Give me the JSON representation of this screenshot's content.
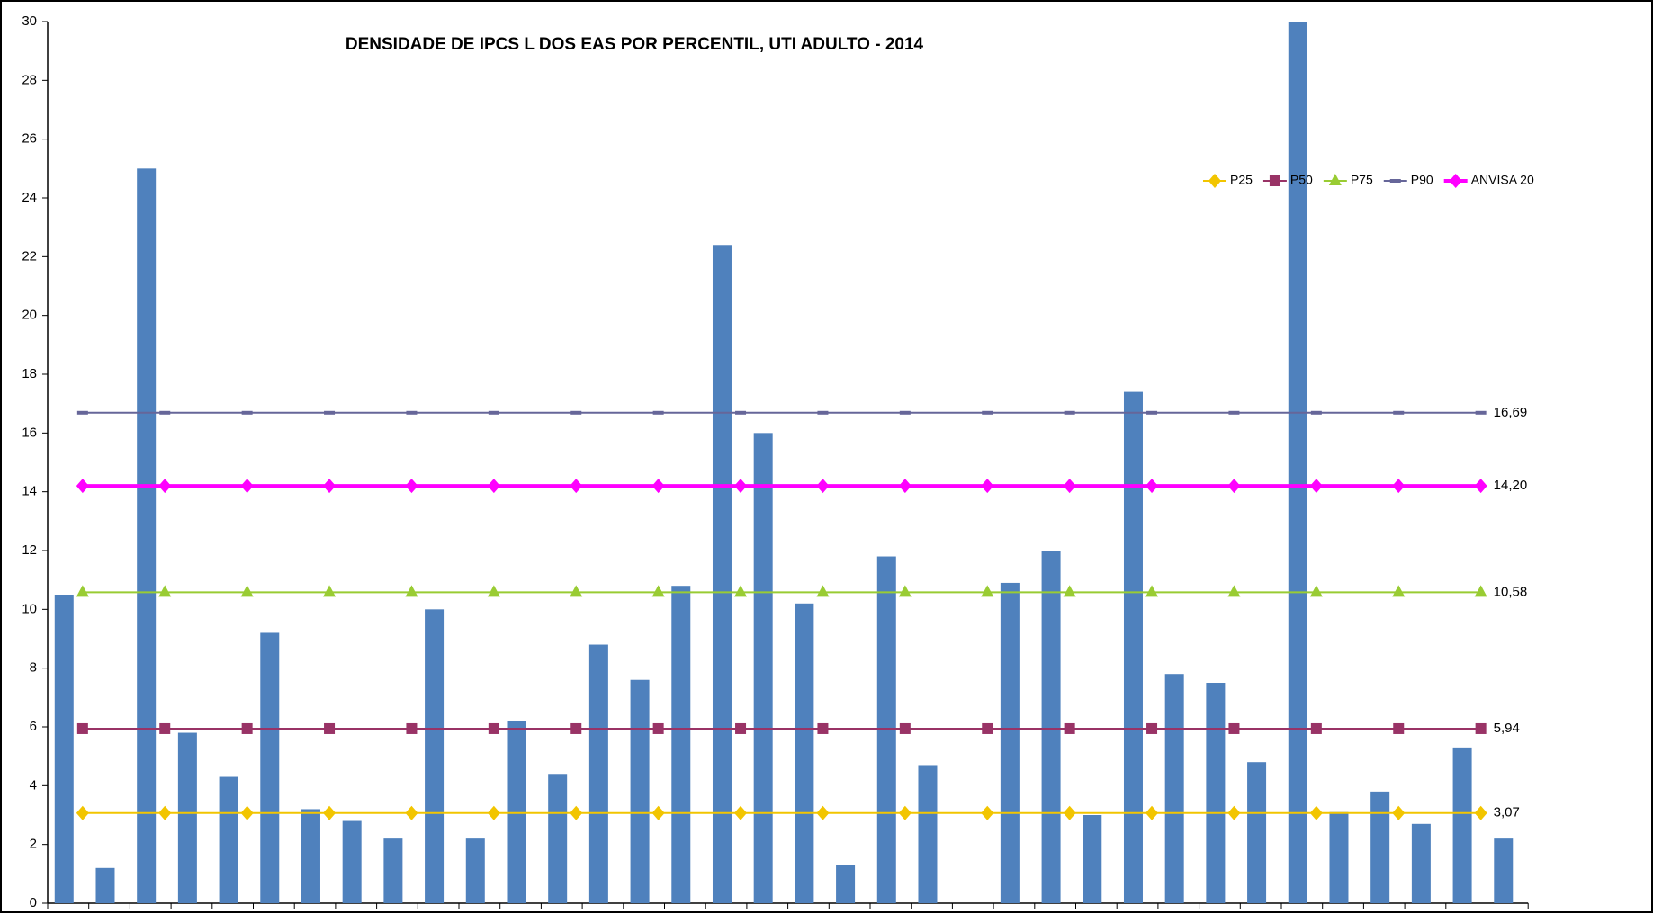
{
  "chart_data": {
    "type": "bar",
    "title": "DENSIDADE DE IPCS L DOS EAS POR PERCENTIL, UTI ADULTO - 2014",
    "values": [
      10.5,
      1.2,
      25.0,
      5.8,
      4.3,
      9.2,
      3.2,
      2.8,
      2.2,
      10.0,
      2.2,
      6.2,
      4.4,
      8.8,
      7.6,
      10.8,
      22.4,
      16.0,
      10.2,
      1.3,
      11.8,
      4.7,
      0,
      10.9,
      12.0,
      3.0,
      17.4,
      7.8,
      7.5,
      4.8,
      30.0,
      3.1,
      3.8,
      2.7,
      5.3,
      2.2
    ],
    "color": "#4f81bd",
    "ylim": [
      0,
      30
    ],
    "yticks": [
      0,
      2,
      4,
      6,
      8,
      10,
      12,
      14,
      16,
      18,
      20,
      22,
      24,
      26,
      28,
      30
    ],
    "grid": false,
    "legend": "upper right",
    "lines": [
      {
        "name": "P25",
        "color": "#f2c500",
        "marker": "diamond",
        "width": 2,
        "values": [
          3.07,
          3.07,
          3.07,
          3.07,
          3.07,
          3.07,
          3.07,
          3.07,
          3.07,
          3.07,
          3.07,
          3.07,
          3.07,
          3.07,
          3.07,
          3.07,
          3.07,
          3.07
        ],
        "value_labels": [
          null,
          null,
          null,
          null,
          null,
          null,
          null,
          null,
          null,
          null,
          null,
          null,
          null,
          null,
          null,
          null,
          null,
          "3,07"
        ]
      },
      {
        "name": "P50",
        "color": "#993366",
        "marker": "square",
        "width": 2,
        "values": [
          5.94,
          5.94,
          5.94,
          5.94,
          5.94,
          5.94,
          5.94,
          5.94,
          5.94,
          5.94,
          5.94,
          5.94,
          5.94,
          5.94,
          5.94,
          5.94,
          5.94,
          5.94
        ],
        "value_labels": [
          null,
          null,
          null,
          null,
          null,
          null,
          null,
          null,
          null,
          null,
          null,
          null,
          null,
          null,
          null,
          null,
          null,
          "5,94"
        ]
      },
      {
        "name": "P75",
        "color": "#99cc33",
        "marker": "triangle",
        "width": 2,
        "values": [
          10.58,
          10.58,
          10.58,
          10.58,
          10.58,
          10.58,
          10.58,
          10.58,
          10.58,
          10.58,
          10.58,
          10.58,
          10.58,
          10.58,
          10.58,
          10.58,
          10.58,
          10.58
        ],
        "value_labels": [
          null,
          null,
          null,
          null,
          null,
          null,
          null,
          null,
          null,
          null,
          null,
          null,
          null,
          null,
          null,
          null,
          null,
          "10,58"
        ]
      },
      {
        "name": "P90",
        "color": "#666699",
        "marker": "dash",
        "width": 2,
        "values": [
          16.69,
          16.69,
          16.69,
          16.69,
          16.69,
          16.69,
          16.69,
          16.69,
          16.69,
          16.69,
          16.69,
          16.69,
          16.69,
          16.69,
          16.69,
          16.69,
          16.69,
          16.69
        ],
        "value_labels": [
          null,
          null,
          null,
          null,
          null,
          null,
          null,
          null,
          null,
          null,
          null,
          null,
          null,
          null,
          null,
          null,
          null,
          "16,69"
        ]
      },
      {
        "name": "ANVISA 20",
        "color": "#ff00ff",
        "marker": "diamond",
        "width": 4,
        "values": [
          14.2,
          14.2,
          14.2,
          14.2,
          14.2,
          14.2,
          14.2,
          14.2,
          14.2,
          14.2,
          14.2,
          14.2,
          14.2,
          14.2,
          14.2,
          14.2,
          14.2,
          14.2
        ],
        "value_labels": [
          null,
          null,
          null,
          null,
          null,
          null,
          null,
          null,
          null,
          null,
          null,
          null,
          null,
          null,
          null,
          null,
          null,
          "14,20"
        ]
      }
    ]
  }
}
